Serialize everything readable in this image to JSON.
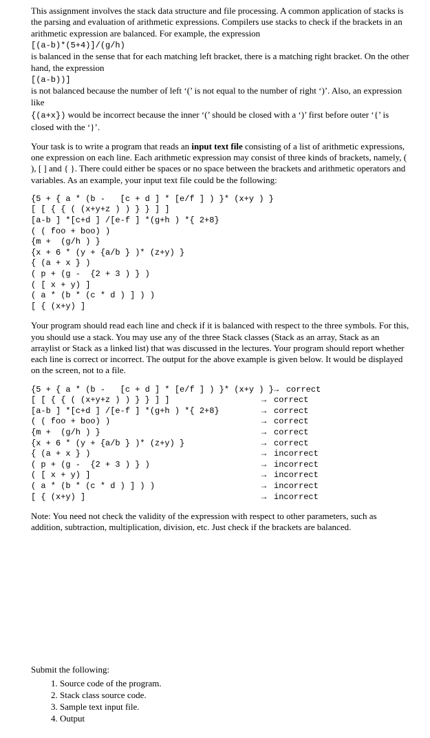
{
  "intro": {
    "p1": "This assignment involves the stack data structure and file processing. A common application of stacks is the parsing and evaluation of arithmetic expressions. Compilers use stacks to check if the brackets in an arithmetic expression are balanced. For example, the expression",
    "expr1": "[(a-b)*(5+4)]/(g/h)",
    "p2": "is balanced in the sense that for each matching left bracket, there is a matching right bracket. On the other hand, the expression",
    "expr2": "[(a-b))]",
    "p3_a": "is not balanced because the number of left ‘(’ is not equal to the number of right ‘)’.  Also, an expression like",
    "expr3": "{(a+x})",
    "p3_b": " would be incorrect because the inner ‘(’ should be closed with a ‘)’ first before outer ‘{’ is closed with the ‘}’."
  },
  "task": {
    "p1_a": "Your task is to write a program that reads an ",
    "p1_bold": "input text file",
    "p1_b": " consisting of a list of arithmetic expressions, one expression on each line. Each arithmetic expression may consist of three kinds of brackets, namely, ( ), [ ] and { }. There could either be spaces or no space between the brackets and arithmetic operators and variables. As an example, your input text file could be the following:"
  },
  "example_input": [
    "{5 + { a * (b -   [c + d ] * [e/f ] ) }* (x+y ) }",
    "[ [ { { ( (x+y+z ) ) } } ] ]",
    "[a-b ] *[c+d ] /[e-f ] *(g+h ) *{ 2+8}",
    "( ( foo + boo) )",
    "{m +  (g/h ) }",
    "{x + 6 * (y + {a/b } )* (z+y) }",
    "{ (a + x } )",
    "( p + (g -  {2 + 3 ) } )",
    "( [ x + y) ]",
    "( a * (b * (c * d ) ] ) )",
    "[ { (x+y) ]"
  ],
  "mid_para": "Your program should read each line and check if it is balanced with respect to the three symbols. For this, you should use a stack. You may use any of the three Stack classes (Stack as an array, Stack as an arraylist or Stack as a linked list) that was discussed in the lectures. Your program should report whether each line is correct or incorrect. The output for the above example is given below. It would be displayed on the screen, not to a file.",
  "results": [
    {
      "expr": "{5 + { a * (b -   [c + d ] * [e/f ] ) }* (x+y ) }",
      "val": "correct"
    },
    {
      "expr": "[ [ { { ( (x+y+z ) ) } } ] ]",
      "val": "correct"
    },
    {
      "expr": "[a-b ] *[c+d ] /[e-f ] *(g+h ) *{ 2+8}",
      "val": "correct"
    },
    {
      "expr": "( ( foo + boo) )",
      "val": "correct"
    },
    {
      "expr": "{m +  (g/h ) }",
      "val": "correct"
    },
    {
      "expr": "{x + 6 * (y + {a/b } )* (z+y) }",
      "val": "correct"
    },
    {
      "expr": "{ (a + x } )",
      "val": "incorrect"
    },
    {
      "expr": "( p + (g -  {2 + 3 ) } )",
      "val": "incorrect"
    },
    {
      "expr": "( [ x + y) ]",
      "val": "incorrect"
    },
    {
      "expr": "( a * (b * (c * d ) ] ) )",
      "val": "incorrect"
    },
    {
      "expr": "[ { (x+y) ]",
      "val": "incorrect"
    }
  ],
  "arrow": "→",
  "note": "Note: You need not check the validity of the expression with respect to other parameters, such as addition, subtraction, multiplication, division, etc. Just check if the brackets are balanced.",
  "submit": {
    "title": "Submit the following:",
    "items": [
      "Source code of the program.",
      "Stack class source code.",
      "Sample text input file.",
      "Output"
    ]
  }
}
